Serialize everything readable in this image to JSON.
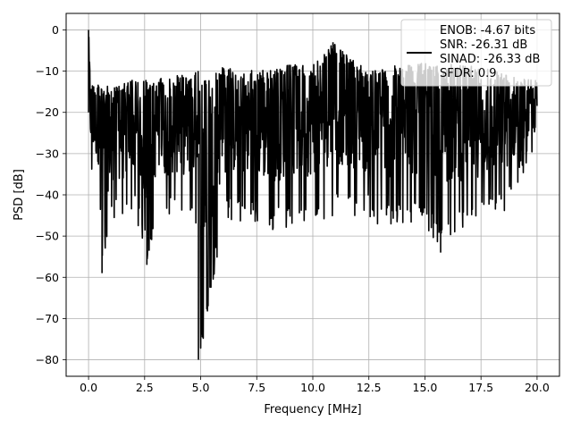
{
  "chart_data": {
    "type": "line",
    "title": "",
    "xlabel": "Frequency [MHz]",
    "ylabel": "PSD [dB]",
    "xlim": [
      -1.0,
      21.0
    ],
    "ylim": [
      -84.0,
      4.0
    ],
    "xticks": [
      0.0,
      2.5,
      5.0,
      7.5,
      10.0,
      12.5,
      15.0,
      17.5,
      20.0
    ],
    "xtick_labels": [
      "0.0",
      "2.5",
      "5.0",
      "7.5",
      "10.0",
      "12.5",
      "15.0",
      "17.5",
      "20.0"
    ],
    "yticks": [
      0,
      -10,
      -20,
      -30,
      -40,
      -50,
      -60,
      -70,
      -80
    ],
    "ytick_labels": [
      "0",
      "−10",
      "−20",
      "−30",
      "−40",
      "−50",
      "−60",
      "−70",
      "−80"
    ],
    "grid": true,
    "legend_position": "top-right",
    "legend_lines": [
      "ENOB: -4.67 bits",
      "SNR: -26.31 dB",
      "SINAD: -26.33 dB",
      "SFDR: 0.9"
    ],
    "series": [
      {
        "color": "#000000",
        "description": "dense noisy PSD trace; envelope and notable features",
        "x": [
          0.0,
          0.1,
          0.25,
          0.5,
          0.6,
          1.0,
          1.5,
          2.0,
          2.5,
          2.6,
          3.0,
          4.0,
          4.9,
          5.0,
          6.0,
          7.5,
          8.0,
          10.0,
          10.9,
          12.0,
          12.5,
          13.0,
          15.0,
          15.7,
          16.0,
          17.5,
          18.5,
          20.0
        ],
        "upper": [
          0.0,
          -12,
          -13,
          -13,
          -13,
          -14,
          -13,
          -12,
          -12,
          -12,
          -12,
          -11,
          -10,
          -11,
          -9,
          -10,
          -9,
          -8,
          -3,
          -8,
          -9,
          -9,
          -8,
          -9,
          -8,
          -9,
          -10,
          -12
        ],
        "lower": [
          -25,
          -36,
          -38,
          -42,
          -59,
          -46,
          -47,
          -45,
          -53,
          -57,
          -46,
          -45,
          -48,
          -80,
          -46,
          -47,
          -49,
          -47,
          -45,
          -45,
          -46,
          -48,
          -47,
          -54,
          -50,
          -47,
          -45,
          -30
        ]
      }
    ]
  }
}
